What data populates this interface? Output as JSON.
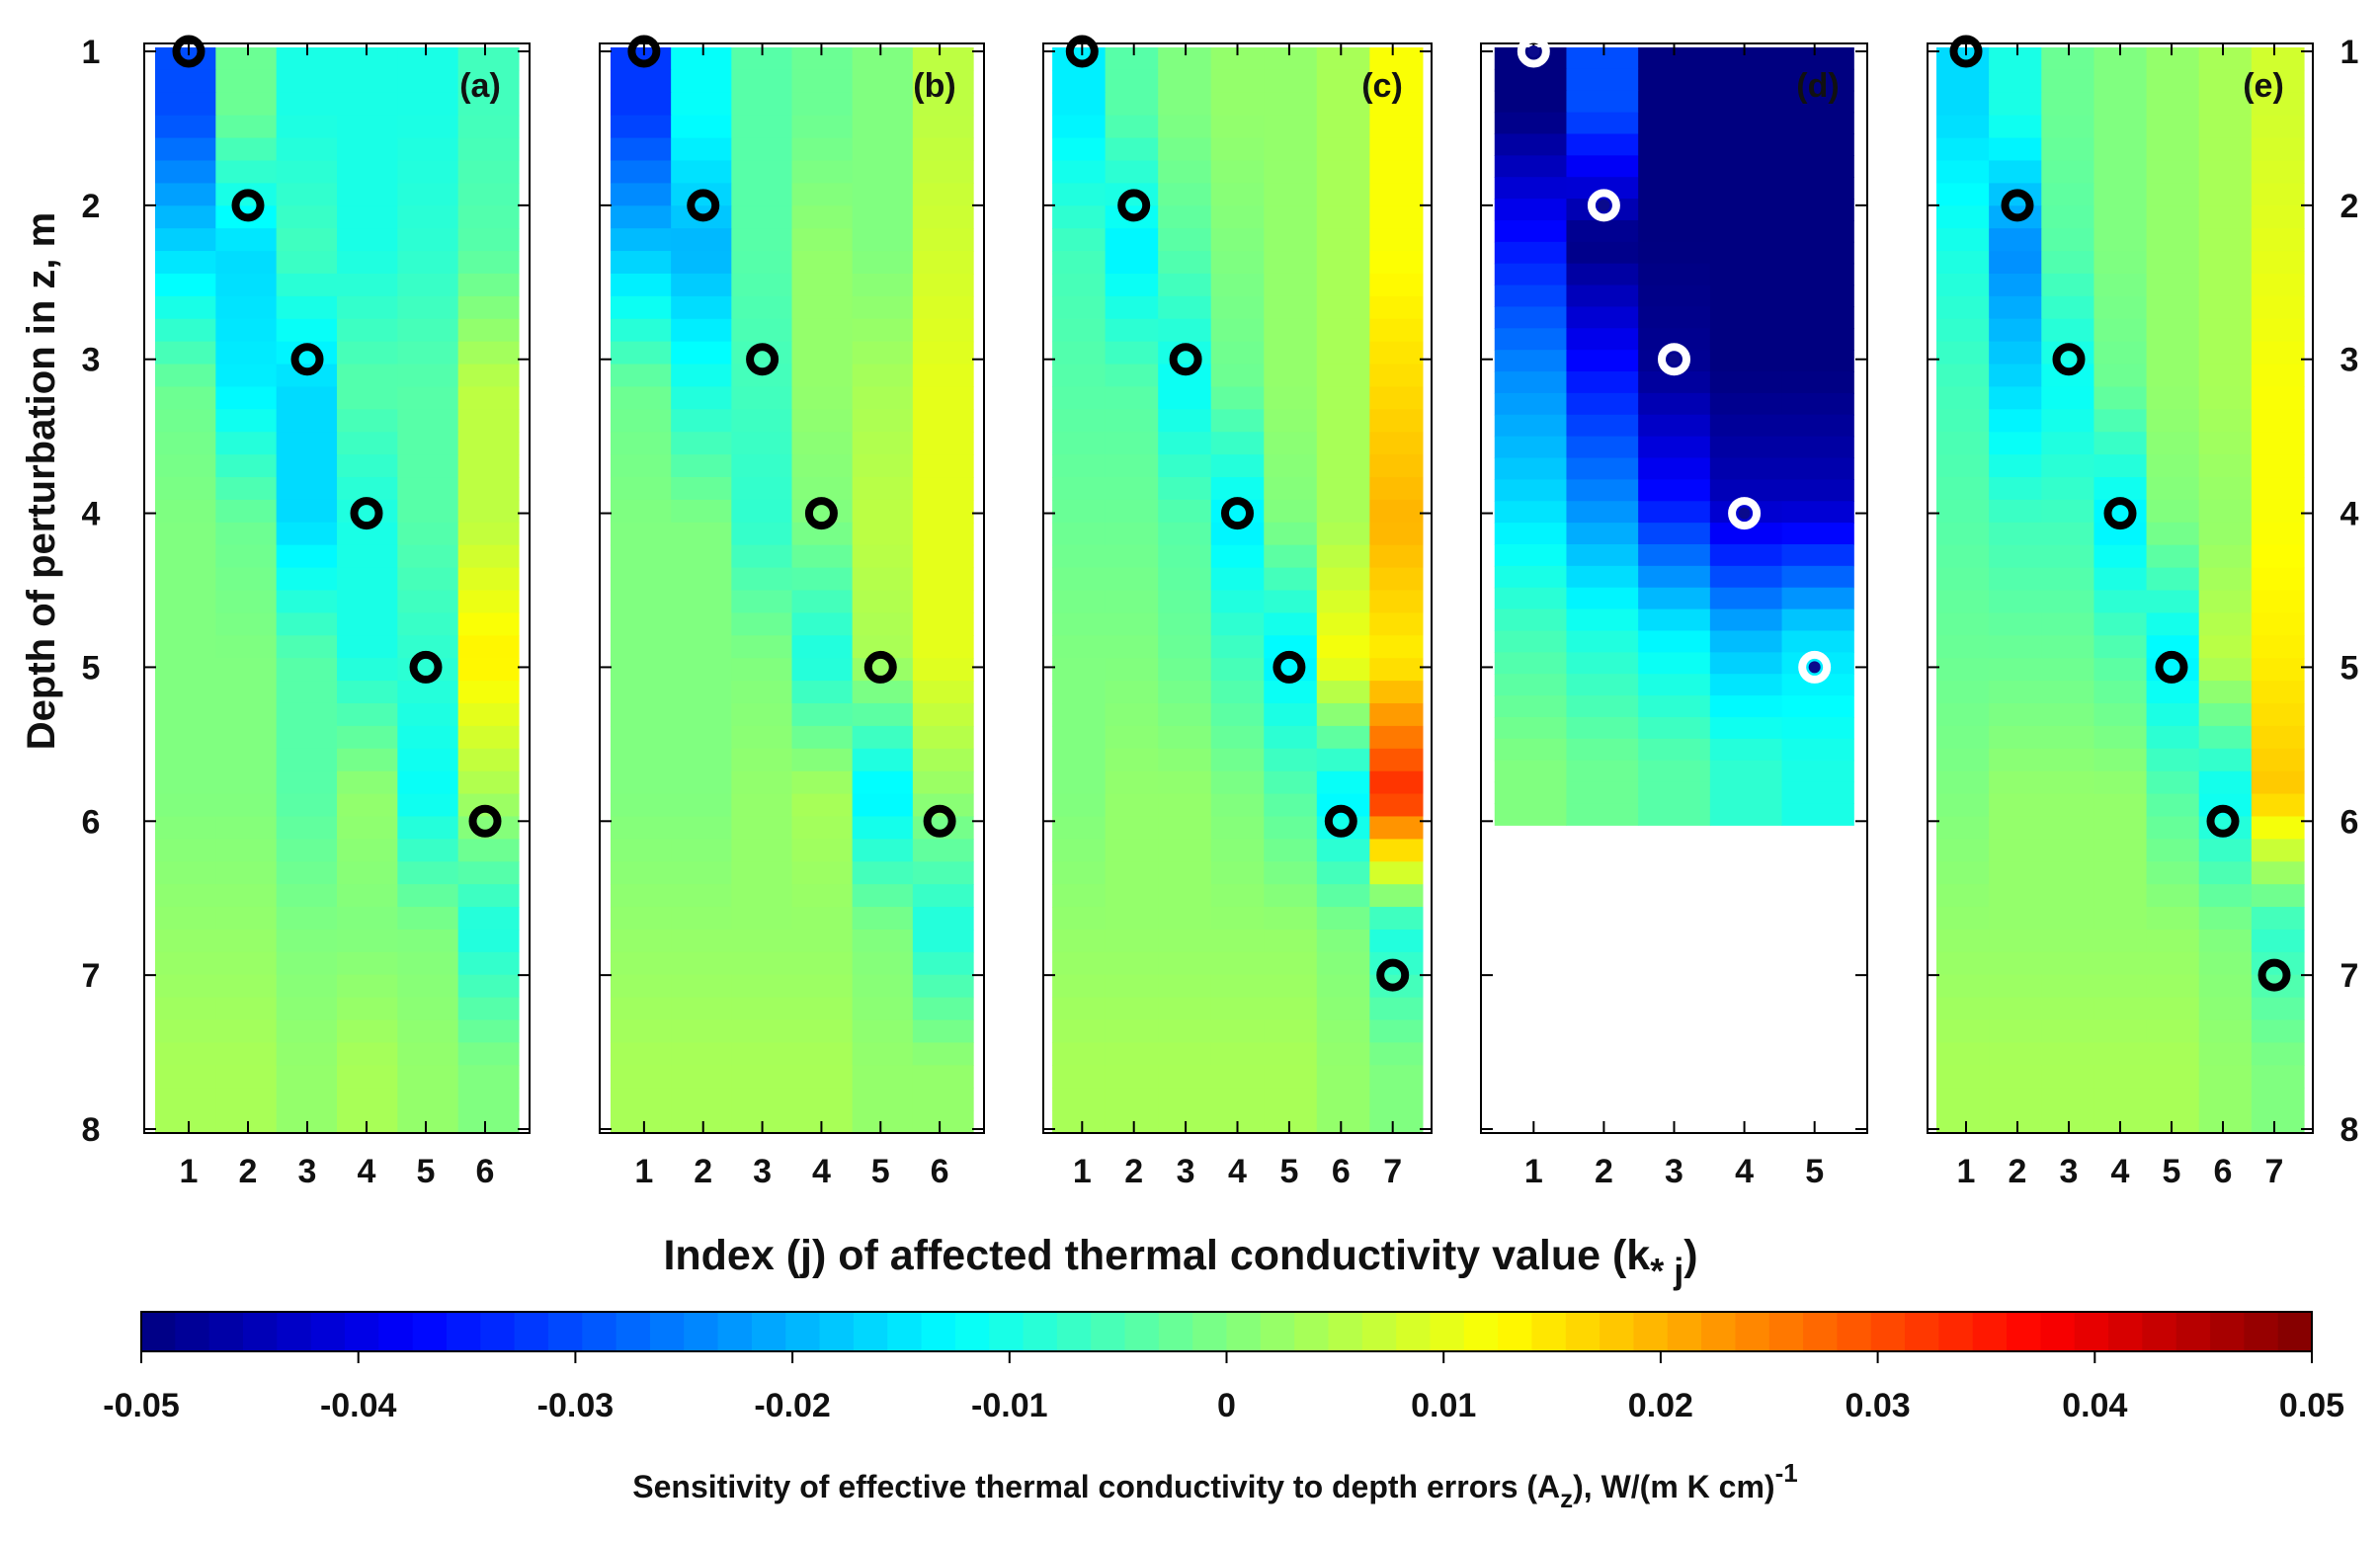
{
  "chart_data": {
    "type": "heatmap",
    "ylabel": "Depth of perturbation in z, m",
    "xlabel_main": "Index (j) of affected thermal conductivity value (k",
    "xlabel_sub": "* j",
    "xlabel_close": ")",
    "colorbar": {
      "label_main": "Sensitivity of effective thermal conductivity to depth errors (A",
      "label_sub": "z",
      "label_rest": "), W/(m K cm)",
      "label_sup": "-1",
      "range": [
        -0.05,
        0.05
      ],
      "ticks": [
        "-0.05",
        "-0.04",
        "-0.03",
        "-0.02",
        "-0.01",
        "0",
        "0.01",
        "0.02",
        "0.03",
        "0.04",
        "0.05"
      ]
    },
    "y_ticks": [
      "1",
      "2",
      "3",
      "4",
      "5",
      "6",
      "7",
      "8"
    ],
    "ylim": [
      1,
      8
    ],
    "grid": false,
    "panels": [
      {
        "label": "(a)",
        "x_ticks": [
          "1",
          "2",
          "3",
          "4",
          "5",
          "6"
        ],
        "depth_max": 8,
        "markers": [
          [
            1,
            1
          ],
          [
            2,
            2
          ],
          [
            3,
            3
          ],
          [
            4,
            4
          ],
          [
            5,
            5
          ],
          [
            6,
            6
          ]
        ],
        "marker_style": "black",
        "values": [
          [
            -0.03,
            -0.002,
            -0.01,
            -0.01,
            -0.01,
            -0.006
          ],
          [
            -0.016,
            -0.016,
            -0.006,
            -0.01,
            -0.008,
            -0.004
          ],
          [
            -0.002,
            -0.014,
            -0.016,
            -0.004,
            -0.004,
            0.006
          ],
          [
            0.0,
            -0.002,
            -0.016,
            -0.01,
            -0.004,
            0.006
          ],
          [
            0.0,
            0.0,
            -0.004,
            -0.01,
            -0.008,
            0.014
          ],
          [
            0.0,
            0.0,
            -0.004,
            0.002,
            -0.012,
            0.004
          ],
          [
            0.002,
            0.002,
            0.0,
            0.0,
            0.0,
            -0.01
          ],
          [
            0.004,
            0.004,
            0.002,
            0.004,
            0.002,
            0.0
          ]
        ]
      },
      {
        "label": "(b)",
        "x_ticks": [
          "1",
          "2",
          "3",
          "4",
          "5",
          "6"
        ],
        "depth_max": 8,
        "markers": [
          [
            1,
            1
          ],
          [
            2,
            2
          ],
          [
            3,
            3
          ],
          [
            4,
            4
          ],
          [
            5,
            5
          ],
          [
            6,
            6
          ]
        ],
        "marker_style": "black",
        "values": [
          [
            -0.032,
            -0.012,
            -0.004,
            -0.002,
            0.0,
            0.006
          ],
          [
            -0.018,
            -0.02,
            -0.004,
            0.002,
            0.0,
            0.008
          ],
          [
            -0.002,
            -0.01,
            -0.006,
            0.002,
            0.004,
            0.01
          ],
          [
            0.0,
            0.0,
            -0.008,
            0.0,
            0.006,
            0.01
          ],
          [
            0.0,
            0.0,
            0.0,
            -0.01,
            0.004,
            0.01
          ],
          [
            0.0,
            0.0,
            0.002,
            0.004,
            -0.014,
            0.002
          ],
          [
            0.002,
            0.002,
            0.002,
            0.002,
            0.0,
            -0.01
          ],
          [
            0.004,
            0.004,
            0.004,
            0.004,
            0.002,
            0.002
          ]
        ]
      },
      {
        "label": "(c)",
        "x_ticks": [
          "1",
          "2",
          "3",
          "4",
          "5",
          "6",
          "7"
        ],
        "depth_max": 8,
        "markers": [
          [
            1,
            1
          ],
          [
            2,
            2
          ],
          [
            3,
            3
          ],
          [
            4,
            4
          ],
          [
            5,
            5
          ],
          [
            6,
            6
          ],
          [
            7,
            7
          ]
        ],
        "marker_style": "black",
        "values": [
          [
            -0.014,
            -0.004,
            0.0,
            0.002,
            0.002,
            0.004,
            0.012
          ],
          [
            -0.006,
            -0.014,
            -0.004,
            0.0,
            0.002,
            0.004,
            0.012
          ],
          [
            -0.004,
            -0.004,
            -0.012,
            -0.002,
            0.002,
            0.004,
            0.016
          ],
          [
            -0.002,
            -0.002,
            -0.004,
            -0.014,
            0.0,
            0.004,
            0.02
          ],
          [
            0.0,
            0.0,
            -0.002,
            -0.006,
            -0.014,
            0.012,
            0.014
          ],
          [
            0.0,
            0.002,
            0.002,
            0.0,
            -0.004,
            -0.014,
            0.034
          ],
          [
            0.002,
            0.002,
            0.002,
            0.002,
            0.002,
            0.0,
            -0.01
          ],
          [
            0.004,
            0.004,
            0.004,
            0.004,
            0.004,
            0.002,
            0.0
          ]
        ]
      },
      {
        "label": "(d)",
        "x_ticks": [
          "1",
          "2",
          "3",
          "4",
          "5"
        ],
        "depth_max": 6,
        "markers": [
          [
            1,
            1
          ],
          [
            2,
            2
          ],
          [
            3,
            3
          ],
          [
            4,
            4
          ],
          [
            5,
            5
          ]
        ],
        "marker_style": "white",
        "values": [
          [
            -0.05,
            -0.03,
            -0.05,
            -0.05,
            -0.05
          ],
          [
            -0.036,
            -0.05,
            -0.05,
            -0.05,
            -0.05
          ],
          [
            -0.024,
            -0.036,
            -0.048,
            -0.05,
            -0.05
          ],
          [
            -0.016,
            -0.024,
            -0.036,
            -0.044,
            -0.044
          ],
          [
            -0.006,
            -0.01,
            -0.014,
            -0.02,
            -0.016
          ],
          [
            0.0,
            -0.002,
            -0.004,
            -0.008,
            -0.01
          ]
        ]
      },
      {
        "label": "(e)",
        "x_ticks": [
          "1",
          "2",
          "3",
          "4",
          "5",
          "6",
          "7"
        ],
        "depth_max": 8,
        "markers": [
          [
            1,
            1
          ],
          [
            2,
            2
          ],
          [
            3,
            3
          ],
          [
            4,
            4
          ],
          [
            5,
            5
          ],
          [
            6,
            6
          ],
          [
            7,
            7
          ]
        ],
        "marker_style": "black",
        "values": [
          [
            -0.016,
            -0.01,
            -0.002,
            0.0,
            0.002,
            0.004,
            0.008
          ],
          [
            -0.01,
            -0.024,
            -0.004,
            0.0,
            0.002,
            0.004,
            0.01
          ],
          [
            -0.006,
            -0.016,
            -0.012,
            -0.002,
            0.002,
            0.004,
            0.012
          ],
          [
            -0.004,
            -0.006,
            -0.006,
            -0.014,
            0.0,
            0.002,
            0.012
          ],
          [
            -0.002,
            -0.002,
            -0.002,
            -0.004,
            -0.014,
            0.006,
            0.014
          ],
          [
            0.0,
            0.002,
            0.002,
            0.002,
            -0.004,
            -0.012,
            0.018
          ],
          [
            0.002,
            0.002,
            0.002,
            0.002,
            0.002,
            0.0,
            -0.008
          ],
          [
            0.004,
            0.004,
            0.004,
            0.004,
            0.004,
            0.002,
            0.0
          ]
        ]
      }
    ]
  },
  "colors": {
    "colormap": "jet",
    "marker_black": "#000000",
    "marker_white": "#ffffff",
    "marker_center_dark": "#0a0a8c",
    "axis": "#000000"
  }
}
